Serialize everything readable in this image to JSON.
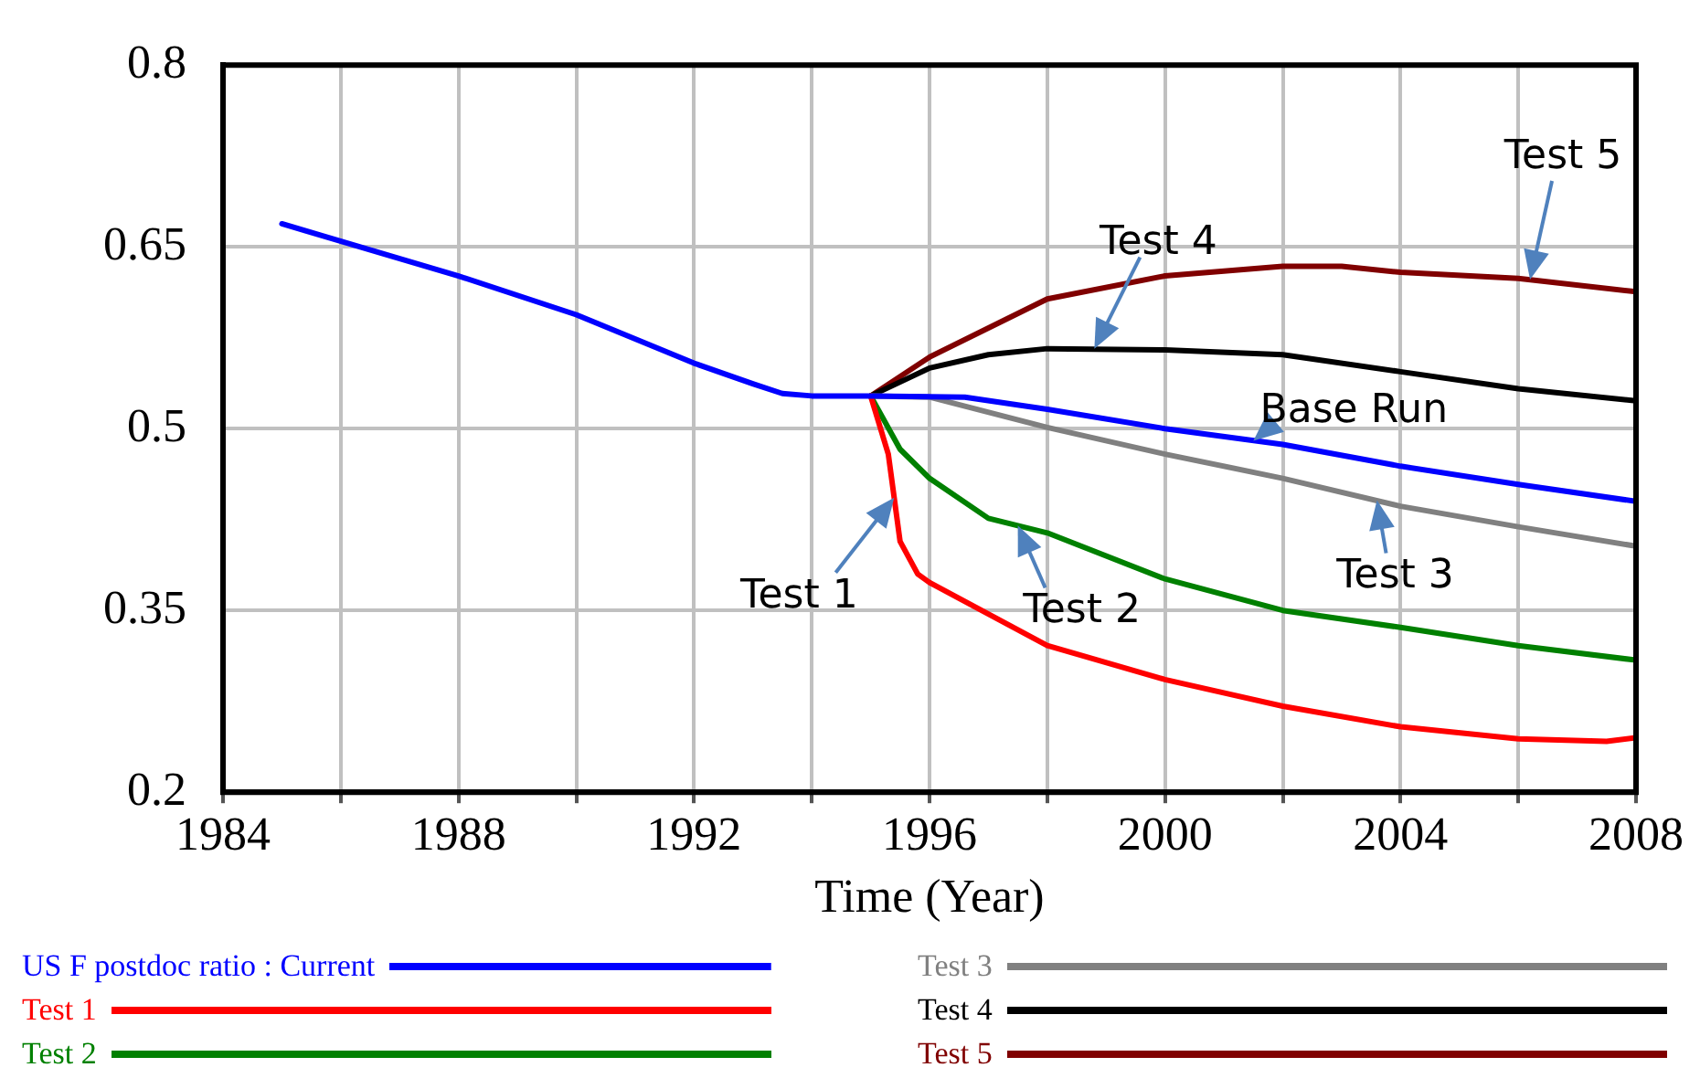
{
  "chart_data": {
    "type": "line",
    "xlabel": "Time (Year)",
    "xlim": [
      1984,
      2008
    ],
    "ylim": [
      0.2,
      0.8
    ],
    "xticks": [
      1984,
      {
        "value": 1986,
        "label": null
      },
      1988,
      {
        "value": 1990,
        "label": null
      },
      1992,
      {
        "value": 1994,
        "label": null
      },
      1996,
      {
        "value": 1998,
        "label": null
      },
      2000,
      {
        "value": 2002,
        "label": null
      },
      2004,
      {
        "value": 2006,
        "label": null
      },
      2008
    ],
    "yticks": [
      0.2,
      0.35,
      0.5,
      0.65,
      0.8
    ],
    "grid": true,
    "legend": "bottom",
    "marker": "none",
    "line_style": "solid",
    "series": [
      {
        "name": "US F postdoc ratio : Current",
        "color": "#0000ff",
        "x": [
          1985,
          1988,
          1990,
          1992,
          1993,
          1993.5,
          1994,
          1995,
          1996.6,
          1998,
          2000,
          2002,
          2004,
          2006,
          2008
        ],
        "values": [
          0.669,
          0.626,
          0.594,
          0.554,
          0.537,
          0.529,
          0.527,
          0.527,
          0.526,
          0.516,
          0.5,
          0.487,
          0.469,
          0.454,
          0.44
        ]
      },
      {
        "name": "Test 1",
        "color": "#ff0000",
        "x": [
          1995,
          1995.3,
          1995.5,
          1995.8,
          1996,
          1998,
          2000,
          2002,
          2004,
          2006,
          2007.5,
          2008
        ],
        "values": [
          0.527,
          0.479,
          0.407,
          0.38,
          0.373,
          0.321,
          0.293,
          0.271,
          0.254,
          0.244,
          0.242,
          0.245
        ]
      },
      {
        "name": "Test 2",
        "color": "#008000",
        "x": [
          1995,
          1995.5,
          1996,
          1997,
          1998,
          2000,
          2002,
          2004,
          2006,
          2008
        ],
        "values": [
          0.527,
          0.483,
          0.459,
          0.426,
          0.414,
          0.376,
          0.35,
          0.336,
          0.321,
          0.309
        ]
      },
      {
        "name": "Test 3",
        "color": "#808080",
        "x": [
          1995,
          1996,
          1998,
          2000,
          2002,
          2004,
          2006,
          2008
        ],
        "values": [
          0.527,
          0.526,
          0.501,
          0.479,
          0.459,
          0.436,
          0.419,
          0.403
        ]
      },
      {
        "name": "Test 4",
        "color": "#000000",
        "x": [
          1995,
          1996,
          1997,
          1998,
          2000,
          2002,
          2004,
          2006,
          2008
        ],
        "values": [
          0.527,
          0.55,
          0.561,
          0.566,
          0.565,
          0.561,
          0.547,
          0.533,
          0.523
        ]
      },
      {
        "name": "Test 5",
        "color": "#800000",
        "x": [
          1995,
          1996,
          1998,
          2000,
          2002,
          2003,
          2004,
          2006,
          2008
        ],
        "values": [
          0.527,
          0.559,
          0.607,
          0.626,
          0.634,
          0.634,
          0.629,
          0.624,
          0.613
        ]
      }
    ],
    "annotations": [
      {
        "text": "Test 1",
        "x": 1995.4,
        "y": 0.443
      },
      {
        "text": "Test 2",
        "x": 1997.5,
        "y": 0.42
      },
      {
        "text": "Test 3",
        "x": 2003.6,
        "y": 0.441
      },
      {
        "text": "Test 4",
        "x": 1998.8,
        "y": 0.566
      },
      {
        "text": "Base Run",
        "x": 2001.5,
        "y": 0.49
      },
      {
        "text": "Test 5",
        "x": 2006.2,
        "y": 0.623
      }
    ]
  }
}
